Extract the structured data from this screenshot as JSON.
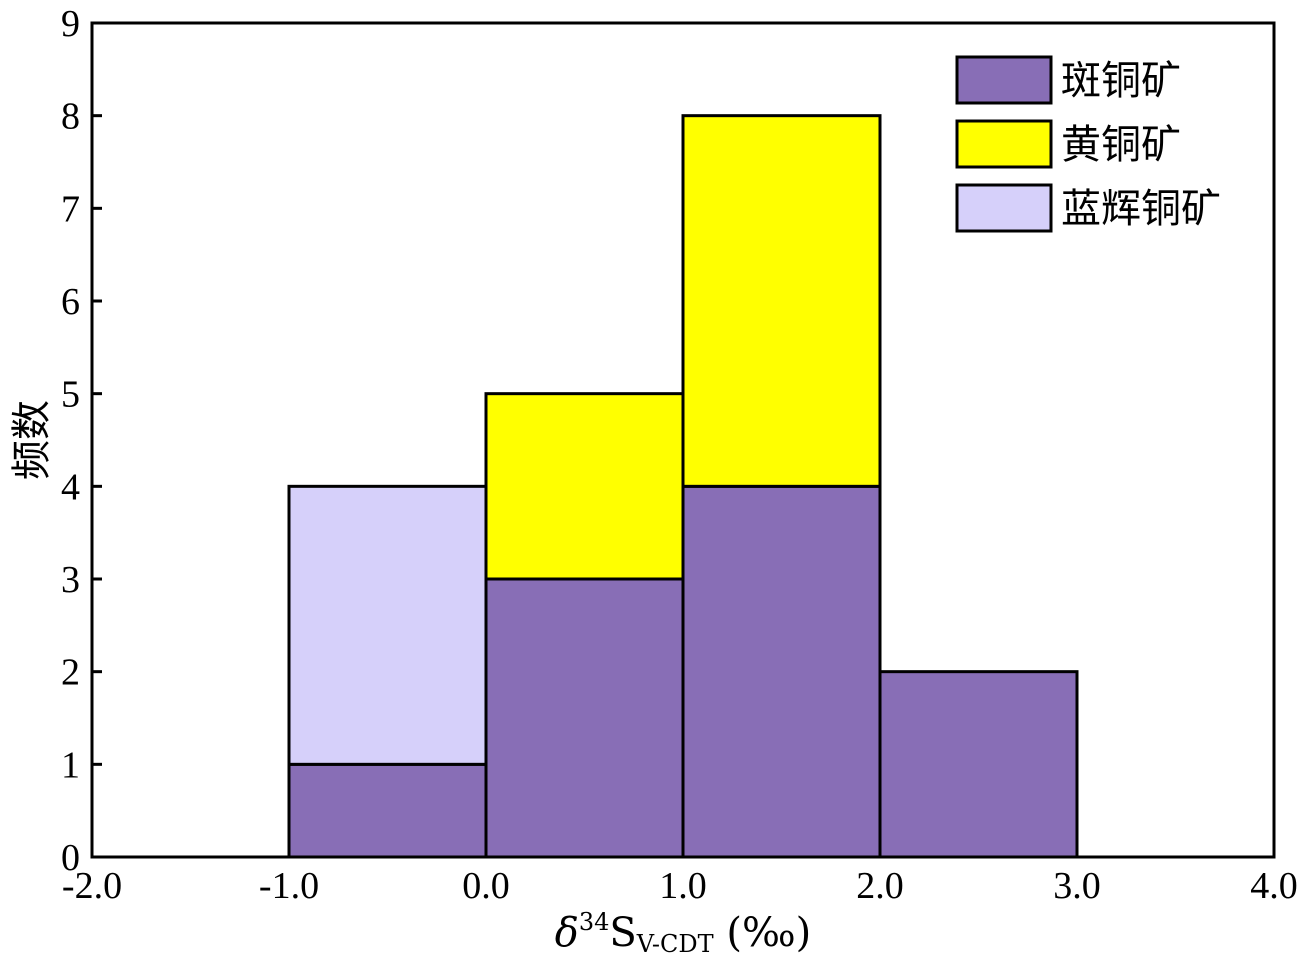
{
  "chart_data": {
    "type": "bar",
    "stacked": true,
    "bin_edges": [
      -1.0,
      0.0,
      1.0,
      2.0,
      3.0
    ],
    "series": [
      {
        "name": "斑铜矿",
        "color": "#886EB6",
        "values": [
          1,
          3,
          4,
          2
        ]
      },
      {
        "name": "黄铜矿",
        "color": "#FFFF00",
        "values": [
          0,
          2,
          4,
          0
        ]
      },
      {
        "name": "蓝辉铜矿",
        "color": "#D6D0FA",
        "values": [
          3,
          0,
          0,
          0
        ]
      }
    ],
    "xlim": [
      -2.0,
      4.0
    ],
    "ylim": [
      0,
      9
    ],
    "x_ticks": [
      -2.0,
      -1.0,
      0.0,
      1.0,
      2.0,
      3.0,
      4.0
    ],
    "x_tick_labels": [
      "-2.0",
      "-1.0",
      "0.0",
      "1.0",
      "2.0",
      "3.0",
      "4.0"
    ],
    "y_ticks": [
      0,
      1,
      2,
      3,
      4,
      5,
      6,
      7,
      8,
      9
    ],
    "y_tick_labels": [
      "0",
      "1",
      "2",
      "3",
      "4",
      "5",
      "6",
      "7",
      "8",
      "9"
    ],
    "xlabel": {
      "delta": "δ",
      "superscript": "34",
      "base": "S",
      "subscript": "V-CDT",
      "unit": " (‰)"
    },
    "ylabel": "频数",
    "legend_position": "top-right",
    "grid": false
  }
}
